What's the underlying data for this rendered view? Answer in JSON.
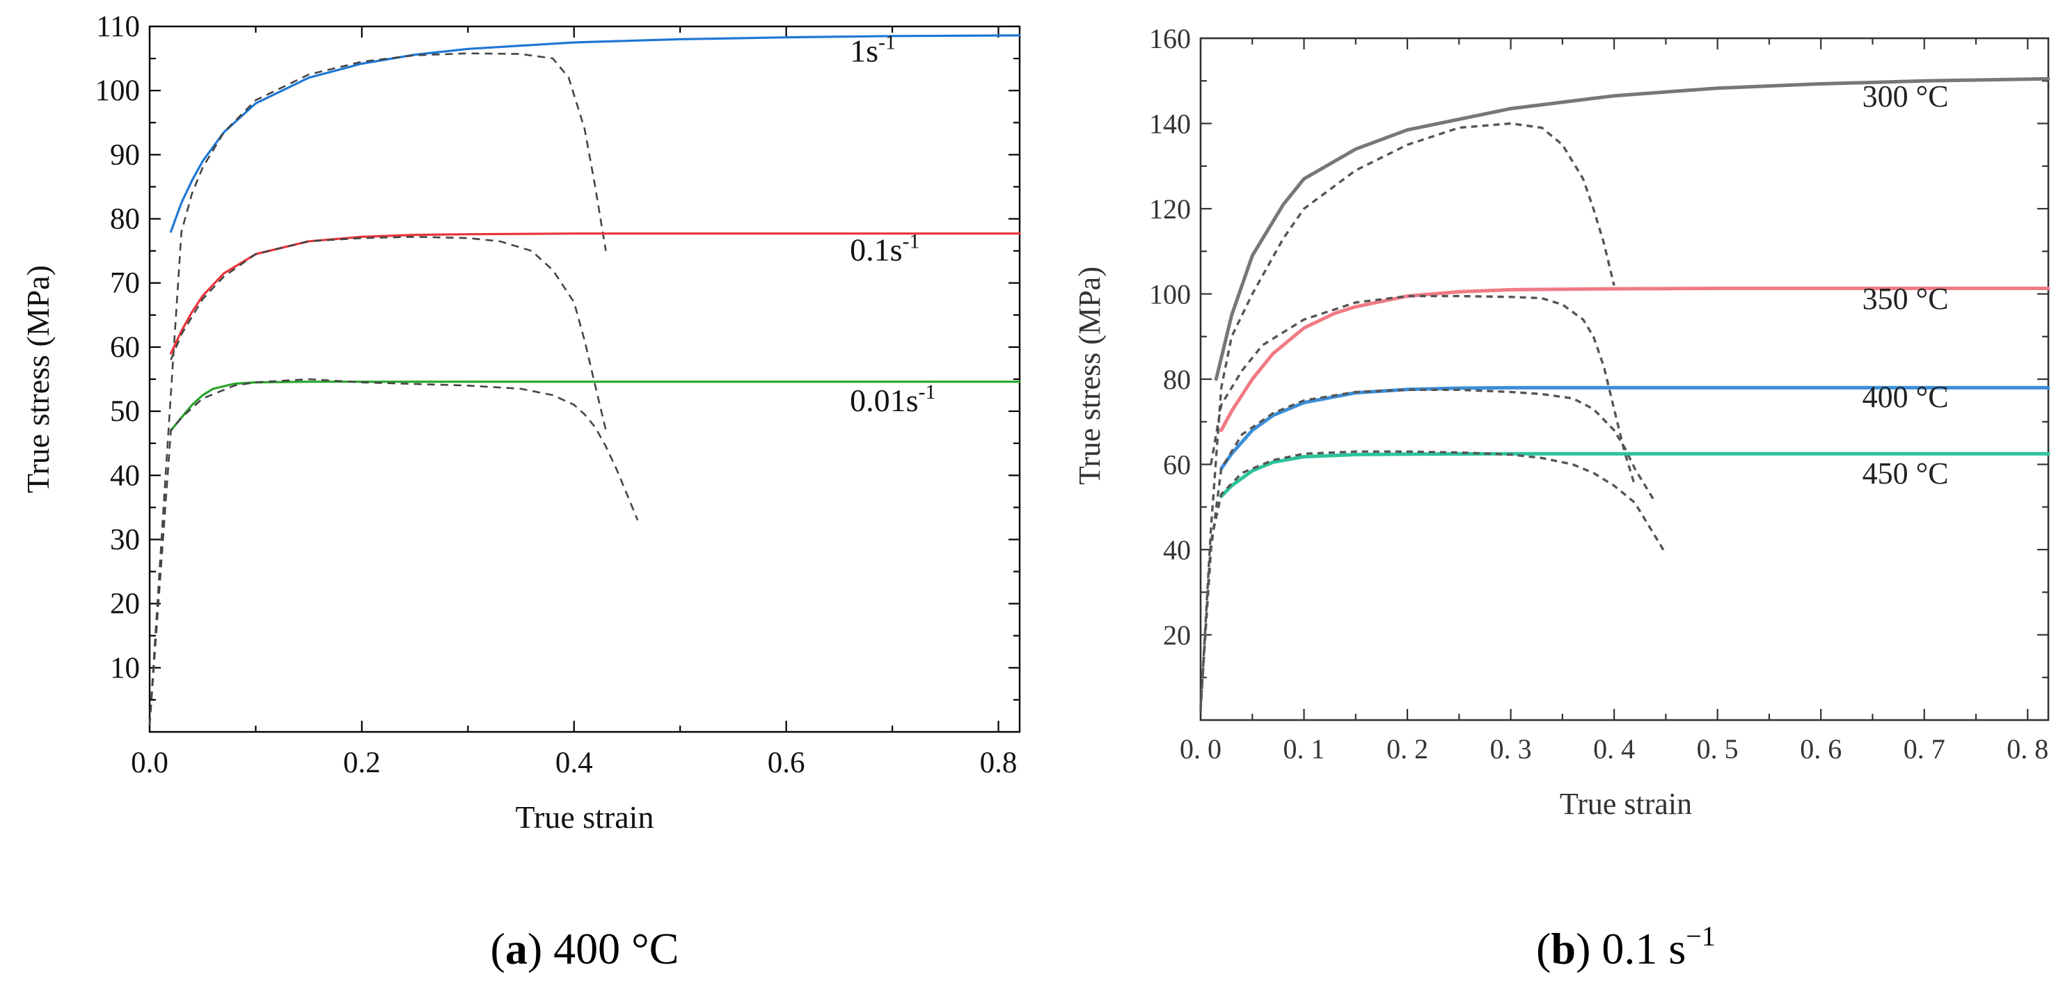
{
  "chart_data": [
    {
      "type": "line",
      "panel": "a",
      "caption_letter": "a",
      "caption_text": "400 °C",
      "xlabel": "True strain",
      "ylabel": "True stress  (MPa)",
      "xlim": [
        0.0,
        0.82
      ],
      "ylim": [
        0,
        110
      ],
      "xticks": [
        "0.0",
        "0.2",
        "0.4",
        "0.6",
        "0.8"
      ],
      "xtick_values": [
        0.0,
        0.2,
        0.4,
        0.6,
        0.8
      ],
      "yticks": [
        "10",
        "20",
        "30",
        "40",
        "50",
        "60",
        "70",
        "80",
        "90",
        "100",
        "110"
      ],
      "ytick_values": [
        10,
        20,
        30,
        40,
        50,
        60,
        70,
        80,
        90,
        100,
        110
      ],
      "series": [
        {
          "name": "1s-1",
          "label_main": "1s",
          "label_sup": "-1",
          "color": "#1f77d4",
          "label_at": [
            0.66,
            104.5
          ],
          "model_x": [
            0.02,
            0.03,
            0.04,
            0.05,
            0.07,
            0.1,
            0.15,
            0.2,
            0.25,
            0.3,
            0.4,
            0.5,
            0.6,
            0.7,
            0.82
          ],
          "model_y": [
            78,
            82.5,
            86,
            89,
            93.5,
            98,
            102,
            104.2,
            105.6,
            106.5,
            107.5,
            108,
            108.3,
            108.5,
            108.6
          ],
          "exp_x": [
            0.0,
            0.015,
            0.03,
            0.04,
            0.05,
            0.07,
            0.1,
            0.15,
            0.2,
            0.25,
            0.3,
            0.35,
            0.38,
            0.395,
            0.41,
            0.42,
            0.43
          ],
          "exp_y": [
            1,
            40,
            78,
            84,
            88,
            93.5,
            98.5,
            102.5,
            104.5,
            105.5,
            105.8,
            105.7,
            105,
            102,
            94,
            85,
            75
          ]
        },
        {
          "name": "0.1s-1",
          "label_main": "0.1s",
          "label_sup": "-1",
          "color": "#e8353a",
          "label_at": [
            0.66,
            73.5
          ],
          "model_x": [
            0.02,
            0.03,
            0.04,
            0.05,
            0.07,
            0.1,
            0.15,
            0.2,
            0.25,
            0.3,
            0.4,
            0.5,
            0.6,
            0.7,
            0.82
          ],
          "model_y": [
            59,
            62.5,
            65.5,
            68,
            71.5,
            74.5,
            76.5,
            77.2,
            77.5,
            77.6,
            77.7,
            77.7,
            77.7,
            77.7,
            77.7
          ],
          "exp_x": [
            0.02,
            0.03,
            0.05,
            0.07,
            0.1,
            0.15,
            0.2,
            0.25,
            0.3,
            0.33,
            0.36,
            0.38,
            0.4,
            0.41,
            0.42,
            0.43
          ],
          "exp_y": [
            58,
            62,
            67.5,
            71,
            74.5,
            76.5,
            77,
            77.2,
            77,
            76.5,
            75,
            72,
            67,
            61,
            54,
            47
          ]
        },
        {
          "name": "0.01s-1",
          "label_main": "0.01s",
          "label_sup": "-1",
          "color": "#2aa42a",
          "label_at": [
            0.66,
            50
          ],
          "model_x": [
            0.02,
            0.03,
            0.04,
            0.05,
            0.06,
            0.08,
            0.1,
            0.15,
            0.2,
            0.3,
            0.4,
            0.5,
            0.6,
            0.7,
            0.82
          ],
          "model_y": [
            47,
            49,
            51,
            52.5,
            53.5,
            54.3,
            54.5,
            54.6,
            54.6,
            54.6,
            54.6,
            54.6,
            54.6,
            54.6,
            54.6
          ],
          "exp_x": [
            0.0,
            0.01,
            0.02,
            0.03,
            0.05,
            0.08,
            0.1,
            0.15,
            0.2,
            0.3,
            0.35,
            0.38,
            0.4,
            0.41,
            0.42,
            0.43,
            0.44,
            0.45,
            0.46
          ],
          "exp_y": [
            1,
            24,
            47,
            49,
            52,
            54,
            54.5,
            55,
            54.5,
            54,
            53.5,
            52.5,
            51,
            49.5,
            47.5,
            44.5,
            41,
            37,
            33
          ]
        }
      ]
    },
    {
      "type": "line",
      "panel": "b",
      "caption_letter": "b",
      "caption_text": "0.1 s",
      "caption_sup": "−1",
      "xlabel": "True strain",
      "ylabel": "True stress (MPa)",
      "xlim": [
        0.0,
        0.82
      ],
      "ylim": [
        0,
        160
      ],
      "xticks": [
        "0. 0",
        "0. 1",
        "0. 2",
        "0. 3",
        "0. 4",
        "0. 5",
        "0. 6",
        "0. 7",
        "0. 8"
      ],
      "xtick_values": [
        0.0,
        0.1,
        0.2,
        0.3,
        0.4,
        0.5,
        0.6,
        0.7,
        0.8
      ],
      "yticks": [
        "20",
        "40",
        "60",
        "80",
        "100",
        "120",
        "140",
        "160"
      ],
      "ytick_values": [
        20,
        40,
        60,
        80,
        100,
        120,
        140,
        160
      ],
      "series": [
        {
          "name": "300 °C",
          "color": "#777777",
          "label_at": [
            0.64,
            144
          ],
          "model_x": [
            0.015,
            0.03,
            0.05,
            0.08,
            0.1,
            0.15,
            0.2,
            0.3,
            0.4,
            0.5,
            0.6,
            0.7,
            0.82
          ],
          "model_y": [
            80,
            95,
            109,
            121,
            127,
            134,
            138.5,
            143.5,
            146.5,
            148.3,
            149.3,
            150,
            150.5
          ],
          "exp_x": [
            0.0,
            0.01,
            0.02,
            0.03,
            0.05,
            0.08,
            0.1,
            0.15,
            0.2,
            0.25,
            0.3,
            0.33,
            0.35,
            0.37,
            0.38,
            0.39,
            0.4
          ],
          "exp_y": [
            2,
            45,
            78,
            90,
            100,
            113,
            120,
            129,
            135,
            139,
            140,
            139,
            135,
            127,
            120,
            112,
            102
          ]
        },
        {
          "name": "350 °C",
          "color": "#f07a84",
          "label_at": [
            0.64,
            96.5
          ],
          "model_x": [
            0.02,
            0.03,
            0.05,
            0.07,
            0.1,
            0.13,
            0.15,
            0.2,
            0.25,
            0.3,
            0.4,
            0.5,
            0.6,
            0.7,
            0.82
          ],
          "model_y": [
            68,
            72.5,
            80,
            86,
            92,
            95.5,
            97,
            99.5,
            100.5,
            101,
            101.2,
            101.3,
            101.3,
            101.3,
            101.3
          ],
          "exp_x": [
            0.01,
            0.02,
            0.04,
            0.06,
            0.1,
            0.15,
            0.2,
            0.25,
            0.3,
            0.33,
            0.35,
            0.37,
            0.38,
            0.39,
            0.4,
            0.41,
            0.42
          ],
          "exp_y": [
            60,
            74,
            82,
            88,
            94,
            98,
            99.5,
            99.5,
            99.3,
            99,
            97.5,
            94,
            90,
            83,
            73,
            63,
            55
          ]
        },
        {
          "name": "400 °C",
          "color": "#3b8ed8",
          "label_at": [
            0.64,
            73.5
          ],
          "model_x": [
            0.02,
            0.03,
            0.05,
            0.07,
            0.1,
            0.15,
            0.2,
            0.25,
            0.3,
            0.4,
            0.5,
            0.6,
            0.7,
            0.82
          ],
          "model_y": [
            59,
            62.5,
            68,
            71.5,
            74.5,
            76.8,
            77.6,
            77.9,
            78,
            78,
            78,
            78,
            78,
            78
          ],
          "exp_x": [
            0.0,
            0.01,
            0.02,
            0.04,
            0.07,
            0.1,
            0.15,
            0.2,
            0.25,
            0.3,
            0.33,
            0.36,
            0.38,
            0.4,
            0.41,
            0.42,
            0.43,
            0.44
          ],
          "exp_y": [
            3,
            40,
            59,
            67,
            72,
            75,
            77,
            77.5,
            77.5,
            77,
            76.5,
            75.5,
            73,
            68,
            64,
            59,
            55,
            51
          ]
        },
        {
          "name": "450 °C",
          "color": "#2cc49a",
          "label_at": [
            0.64,
            55.5
          ],
          "model_x": [
            0.02,
            0.03,
            0.05,
            0.07,
            0.1,
            0.15,
            0.2,
            0.3,
            0.4,
            0.5,
            0.6,
            0.7,
            0.82
          ],
          "model_y": [
            52.5,
            55,
            58.5,
            60.5,
            61.8,
            62.3,
            62.4,
            62.5,
            62.5,
            62.5,
            62.5,
            62.5,
            62.5
          ],
          "exp_x": [
            0.0,
            0.01,
            0.02,
            0.04,
            0.07,
            0.1,
            0.15,
            0.2,
            0.25,
            0.3,
            0.33,
            0.36,
            0.38,
            0.4,
            0.42,
            0.43,
            0.44,
            0.45
          ],
          "exp_y": [
            3,
            42,
            53,
            58,
            61,
            62.5,
            63,
            63,
            62.8,
            62.3,
            61.5,
            60,
            58,
            55,
            51,
            47,
            43,
            39
          ]
        }
      ]
    }
  ]
}
